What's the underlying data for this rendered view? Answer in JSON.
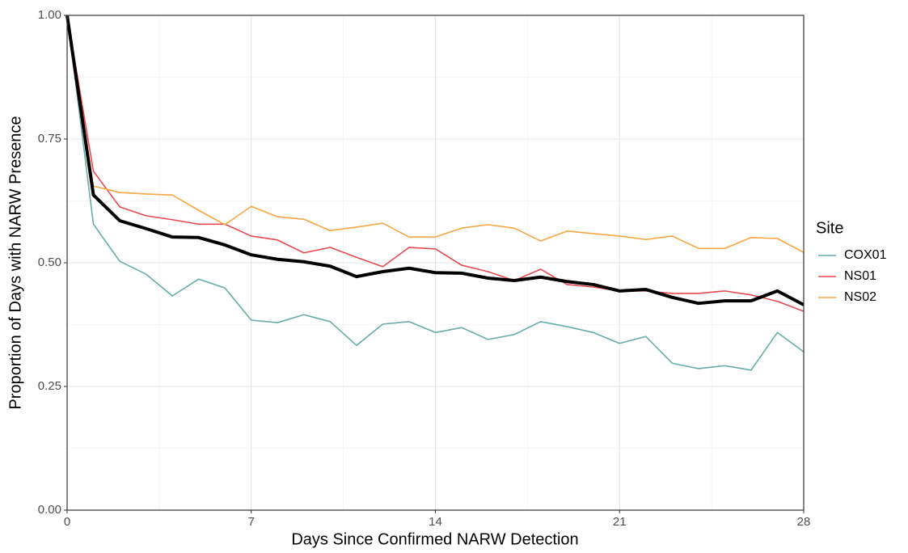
{
  "chart_data": {
    "type": "line",
    "x_label": "Days Since Confirmed NARW Detection",
    "y_label": "Proportion of Days with NARW Presence",
    "legend_title": "Site",
    "legend_position": "right",
    "grid": true,
    "x": [
      0,
      1,
      2,
      3,
      4,
      5,
      6,
      7,
      8,
      9,
      10,
      11,
      12,
      13,
      14,
      15,
      16,
      17,
      18,
      19,
      20,
      21,
      22,
      23,
      24,
      25,
      26,
      27,
      28
    ],
    "series": [
      {
        "name": "COX01",
        "color": "#66aca8",
        "values": [
          1.0,
          0.578,
          0.503,
          0.477,
          0.433,
          0.467,
          0.449,
          0.384,
          0.379,
          0.395,
          0.381,
          0.333,
          0.376,
          0.381,
          0.359,
          0.369,
          0.345,
          0.355,
          0.381,
          0.371,
          0.359,
          0.337,
          0.351,
          0.297,
          0.286,
          0.292,
          0.283,
          0.359,
          0.32
        ]
      },
      {
        "name": "NS01",
        "color": "#e8494f",
        "values": [
          1.0,
          0.685,
          0.613,
          0.595,
          0.587,
          0.578,
          0.578,
          0.554,
          0.546,
          0.52,
          0.531,
          0.511,
          0.492,
          0.531,
          0.528,
          0.495,
          0.482,
          0.464,
          0.487,
          0.456,
          0.451,
          0.443,
          0.443,
          0.438,
          0.438,
          0.443,
          0.435,
          0.422,
          0.402
        ]
      },
      {
        "name": "NS02",
        "color": "#f7a643",
        "values": [
          1.0,
          0.655,
          0.642,
          0.639,
          0.637,
          0.606,
          0.577,
          0.614,
          0.593,
          0.588,
          0.565,
          0.572,
          0.58,
          0.552,
          0.552,
          0.57,
          0.577,
          0.57,
          0.544,
          0.564,
          0.559,
          0.554,
          0.547,
          0.554,
          0.529,
          0.529,
          0.551,
          0.549,
          0.521
        ]
      },
      {
        "color": "#000000",
        "width": 4,
        "values": [
          1.0,
          0.637,
          0.585,
          0.569,
          0.552,
          0.551,
          0.536,
          0.516,
          0.507,
          0.502,
          0.493,
          0.472,
          0.482,
          0.489,
          0.48,
          0.479,
          0.469,
          0.464,
          0.471,
          0.462,
          0.456,
          0.443,
          0.446,
          0.43,
          0.418,
          0.423,
          0.423,
          0.443,
          0.415
        ]
      }
    ],
    "xlim": [
      0,
      28
    ],
    "xticks": [
      0,
      7,
      14,
      21,
      28
    ],
    "ylim": [
      0,
      1
    ],
    "yticks": [
      {
        "value": 0,
        "label": "0.00"
      },
      {
        "value": 0.25,
        "label": "0.25"
      },
      {
        "value": 0.5,
        "label": "0.50"
      },
      {
        "value": 0.75,
        "label": "0.75"
      },
      {
        "value": 1,
        "label": "1.00"
      }
    ]
  }
}
